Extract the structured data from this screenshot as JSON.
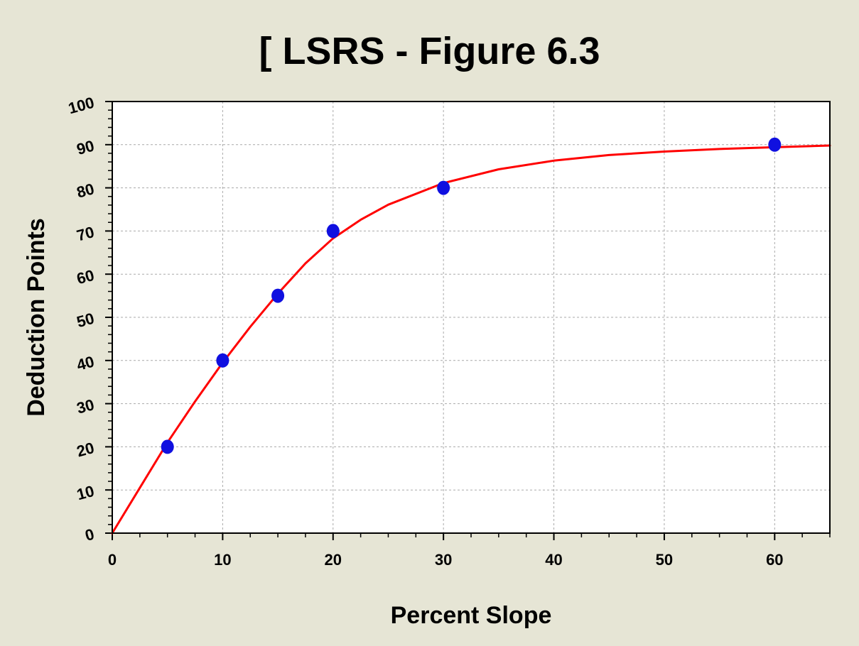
{
  "chart_data": {
    "type": "scatter",
    "title": "[ LSRS - Figure 6.3",
    "xlabel": "Percent Slope",
    "ylabel": "Deduction Points",
    "xlim": [
      0,
      65
    ],
    "ylim": [
      0,
      100
    ],
    "x_ticks": [
      0,
      10,
      20,
      30,
      40,
      50,
      60
    ],
    "y_ticks": [
      0,
      10,
      20,
      30,
      40,
      50,
      60,
      70,
      80,
      90,
      100
    ],
    "grid": true,
    "series": [
      {
        "kind": "points",
        "color": "#1010e0",
        "x": [
          5,
          10,
          15,
          20,
          30,
          60
        ],
        "y": [
          20,
          40,
          55,
          70,
          80,
          90
        ]
      },
      {
        "kind": "fitted-curve",
        "color": "#ff0000",
        "x": [
          0,
          2.5,
          5,
          7.5,
          10,
          12.5,
          15,
          17.5,
          20,
          22.5,
          25,
          30,
          35,
          40,
          45,
          50,
          55,
          60,
          65
        ],
        "y": [
          0,
          10.5,
          21,
          30.5,
          39.5,
          47.8,
          55.5,
          62.5,
          68.3,
          72.6,
          76.1,
          81.1,
          84.3,
          86.3,
          87.6,
          88.4,
          89,
          89.4,
          89.8
        ]
      }
    ]
  },
  "colors": {
    "background": "#e6e5d5",
    "plot_area": "#ffffff",
    "grid": "#a9a9a9",
    "points": "#1010e0",
    "curve": "#ff0000"
  }
}
